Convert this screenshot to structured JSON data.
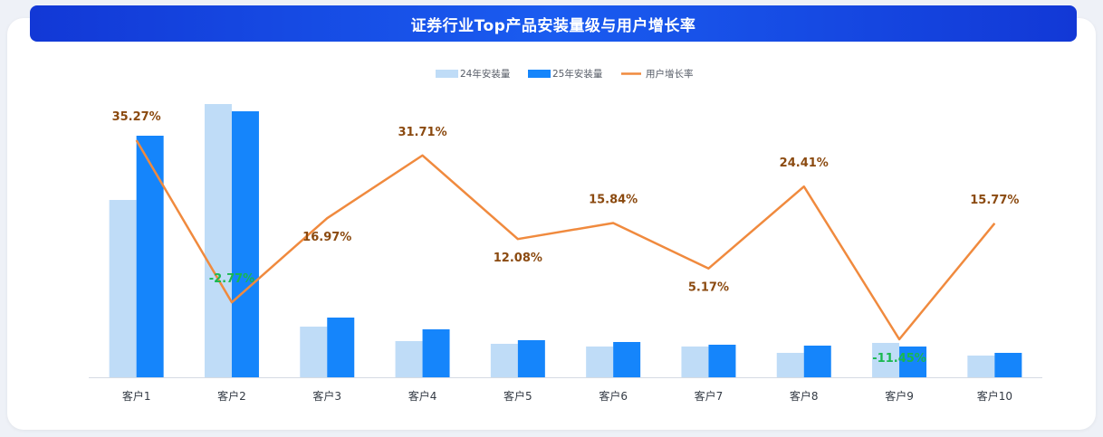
{
  "title": "证券行业Top产品安装量级与用户增长率",
  "colors": {
    "series_24": "#bfdcf7",
    "series_25": "#1585fb",
    "growth_line": "#f08a3e",
    "label_positive": "#8b4a10",
    "label_negative": "#19b84f",
    "title_bg": "#1a4ee8"
  },
  "chart_data": {
    "type": "bar",
    "title": "证券行业Top产品安装量级与用户增长率",
    "categories": [
      "客户1",
      "客户2",
      "客户3",
      "客户4",
      "客户5",
      "客户6",
      "客户7",
      "客户8",
      "客户9",
      "客户10"
    ],
    "series": [
      {
        "name": "24年安装量",
        "type": "bar",
        "values": [
          196,
          302,
          56,
          40,
          37,
          34,
          34,
          27,
          38,
          24
        ]
      },
      {
        "name": "25年安装量",
        "type": "bar",
        "values": [
          267,
          294,
          66,
          53,
          41,
          39,
          36,
          35,
          34,
          27
        ]
      },
      {
        "name": "用户增长率",
        "type": "line",
        "values": [
          35.27,
          -2.77,
          16.97,
          31.71,
          12.08,
          15.84,
          5.17,
          24.41,
          -11.45,
          15.77
        ]
      }
    ],
    "line_labels": [
      "35.27%",
      "-2.77%",
      "16.97%",
      "31.71%",
      "12.08%",
      "15.84%",
      "5.17%",
      "24.41%",
      "-11.45%",
      "15.77%"
    ],
    "bar_ylim": [
      0,
      302
    ],
    "line_ylim": [
      -11.45,
      35.27
    ],
    "legend_position": "top-center",
    "grid": false
  }
}
